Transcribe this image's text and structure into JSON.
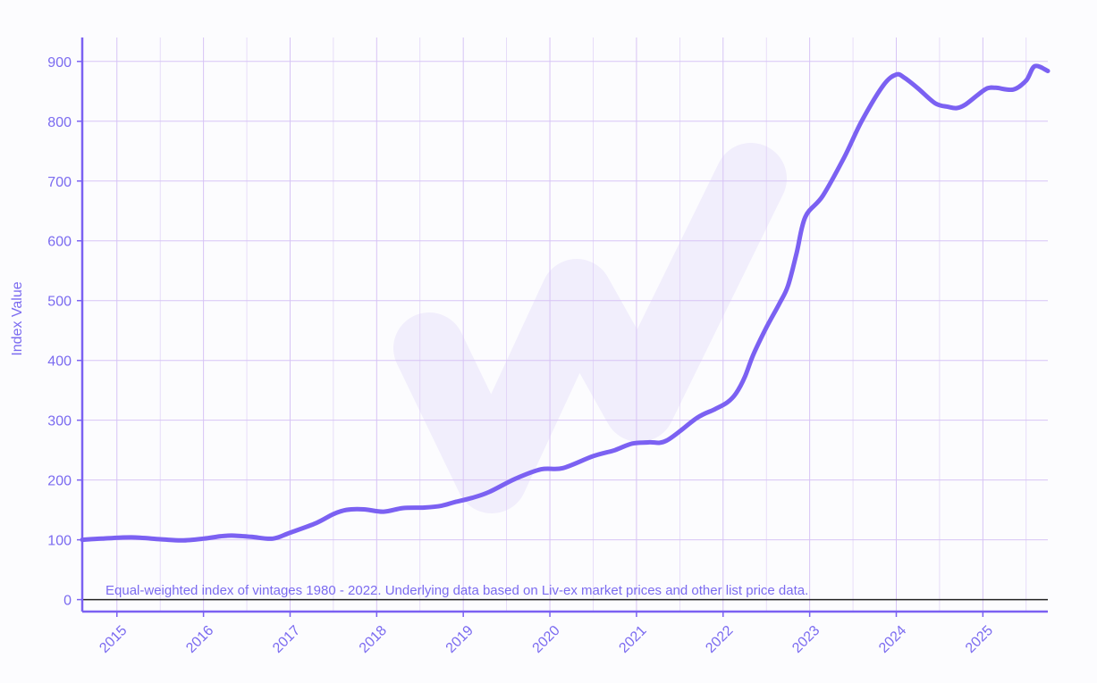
{
  "chart_data": {
    "type": "line",
    "title": "",
    "xlabel": "",
    "ylabel": "Index Value",
    "annotation": "Equal-weighted index of vintages 1980 - 2022. Underlying data based on Liv-ex market prices and other list price data.",
    "xlim": [
      2014.6,
      2025.75
    ],
    "ylim": [
      -20,
      940
    ],
    "y_ticks": [
      0,
      100,
      200,
      300,
      400,
      500,
      600,
      700,
      800,
      900
    ],
    "x_ticks": [
      "2015",
      "2016",
      "2017",
      "2018",
      "2019",
      "2020",
      "2021",
      "2022",
      "2023",
      "2024",
      "2025"
    ],
    "grid": true,
    "series": [
      {
        "color": "#7b61f2",
        "x": [
          2014.6,
          2014.83,
          2015.17,
          2015.5,
          2015.75,
          2016.0,
          2016.2,
          2016.33,
          2016.55,
          2016.8,
          2017.0,
          2017.3,
          2017.5,
          2017.65,
          2017.85,
          2018.08,
          2018.3,
          2018.55,
          2018.75,
          2018.9,
          2019.1,
          2019.3,
          2019.6,
          2019.9,
          2020.15,
          2020.5,
          2020.75,
          2020.95,
          2021.15,
          2021.35,
          2021.7,
          2021.9,
          2022.05,
          2022.15,
          2022.25,
          2022.35,
          2022.5,
          2022.65,
          2022.75,
          2022.85,
          2022.95,
          2023.15,
          2023.4,
          2023.6,
          2023.85,
          2024.0,
          2024.1,
          2024.25,
          2024.45,
          2024.6,
          2024.7,
          2024.8,
          2024.95,
          2025.05,
          2025.15,
          2025.35,
          2025.5,
          2025.6,
          2025.75
        ],
        "values": [
          100,
          102,
          104,
          101,
          99,
          102,
          106,
          107,
          105,
          102,
          112,
          128,
          143,
          150,
          151,
          147,
          153,
          154,
          157,
          163,
          170,
          180,
          202,
          218,
          220,
          240,
          250,
          261,
          263,
          266,
          304,
          318,
          330,
          345,
          372,
          410,
          455,
          495,
          525,
          580,
          640,
          675,
          740,
          800,
          860,
          878,
          872,
          855,
          830,
          824,
          822,
          828,
          845,
          855,
          856,
          853,
          868,
          892,
          884
        ]
      }
    ]
  },
  "colors": {
    "line": "#7b61f2",
    "axis": "#7b61f2",
    "grid": "#d7c4f5",
    "tick_text": "#7b6bf0",
    "watermark": "#f1eefc",
    "zero_line": "#222222"
  }
}
